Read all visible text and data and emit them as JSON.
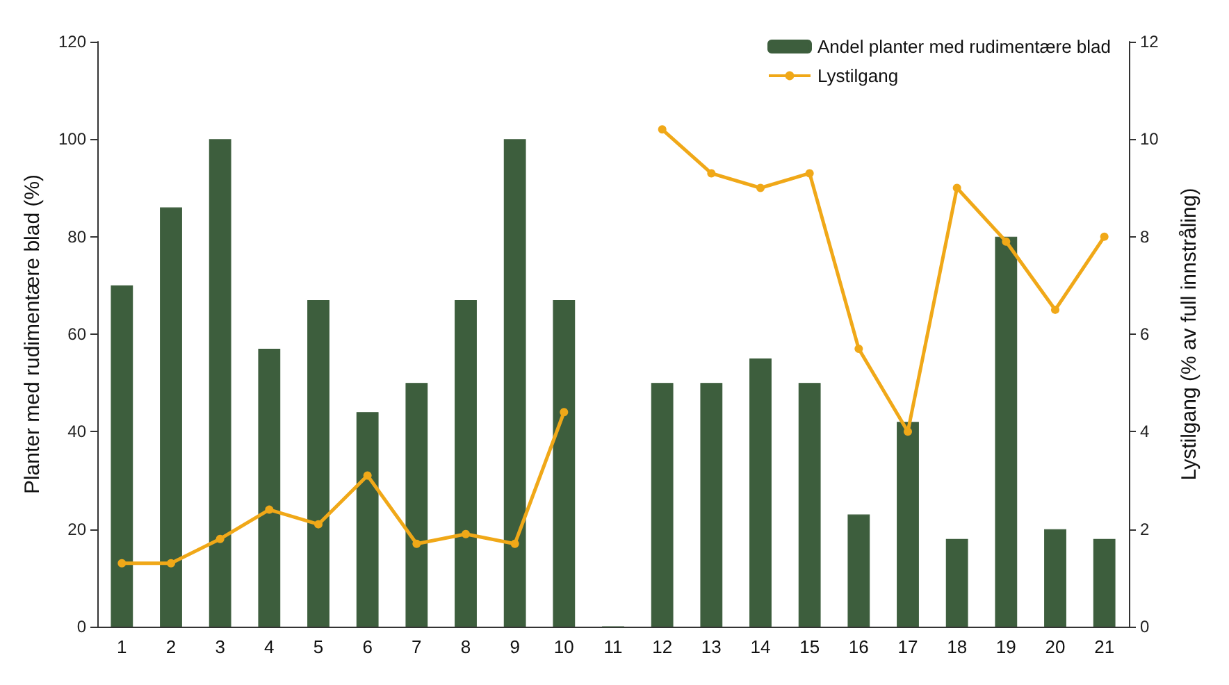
{
  "chart_data": {
    "type": "bar",
    "categories": [
      "1",
      "2",
      "3",
      "4",
      "5",
      "6",
      "7",
      "8",
      "9",
      "10",
      "11",
      "12",
      "13",
      "14",
      "15",
      "16",
      "17",
      "18",
      "19",
      "20",
      "21"
    ],
    "ylabel": "Planter med rudimentære blad (%)",
    "y2label": "Lystilgang (% av full innstråling)",
    "ylim": [
      0,
      120
    ],
    "yticks": [
      0,
      20,
      40,
      60,
      80,
      100,
      120
    ],
    "y2lim": [
      0,
      12
    ],
    "y2ticks": [
      0,
      2,
      4,
      6,
      8,
      10,
      12
    ],
    "series": [
      {
        "name": "Andel planter med rudimentære blad",
        "color": "#3d5e3d",
        "values": [
          70,
          86,
          100,
          57,
          67,
          44,
          50,
          67,
          100,
          67,
          0,
          50,
          50,
          55,
          50,
          23,
          42,
          18,
          80,
          20,
          18
        ]
      },
      {
        "name": "Lystilgang",
        "type": "line",
        "axis": "y2",
        "color": "#f0a818",
        "values": [
          1.3,
          1.3,
          1.8,
          2.4,
          2.1,
          3.1,
          1.7,
          1.9,
          1.7,
          4.4,
          null,
          10.2,
          9.3,
          9.0,
          9.3,
          5.7,
          4.0,
          9.0,
          7.9,
          6.5,
          8.0
        ]
      }
    ],
    "legend": "top right",
    "marker": "circle",
    "grid": false
  }
}
